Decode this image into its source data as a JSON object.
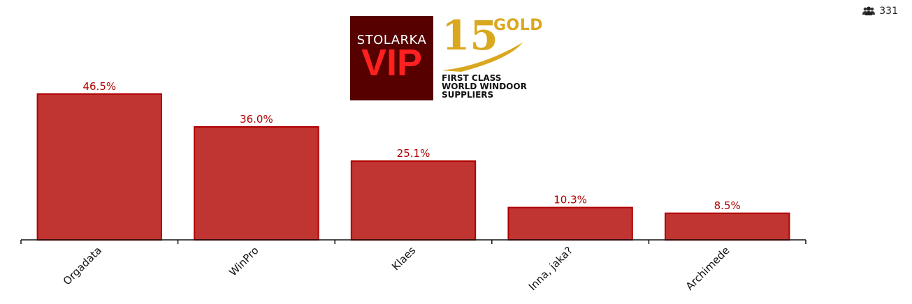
{
  "respondents": {
    "count": "331",
    "icon": "users-icon"
  },
  "logo": {
    "brand_top": "STOLARKA",
    "brand_bottom": "VIP",
    "badge_number": "15",
    "badge_word": "GOLD",
    "tagline": "FIRST CLASS\nWORLD WINDOOR\nSUPPLIERS",
    "colors": {
      "brand_bg": "#560000",
      "brand_accent": "#ff2020",
      "gold": "#d9a81f"
    }
  },
  "chart_data": {
    "type": "bar",
    "categories": [
      "Orgadata",
      "WinPro",
      "Klaes",
      "Inna, jaka?",
      "Archimede"
    ],
    "values": [
      46.5,
      36.0,
      25.1,
      10.3,
      8.5
    ],
    "value_labels": [
      "46.5%",
      "36.0%",
      "25.1%",
      "10.3%",
      "8.5%"
    ],
    "unit": "%",
    "ylim": [
      0,
      50
    ],
    "grid": false,
    "legend": "none",
    "colors": {
      "bar_fill": "#c03431",
      "bar_stroke": "#b00000",
      "label": "#b00000"
    }
  }
}
